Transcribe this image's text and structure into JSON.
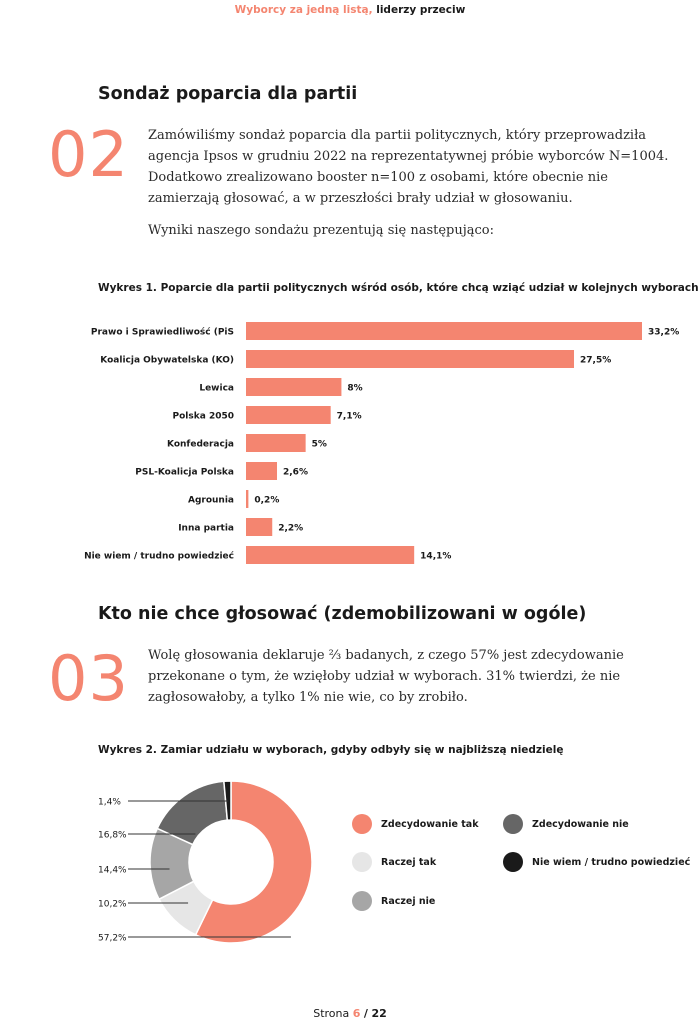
{
  "header": {
    "accent_text": "Wyborcy za jedną listą,",
    "dark_text": " liderzy przeciw"
  },
  "section2": {
    "title": "Sondaż poparcia dla partii",
    "number": "02",
    "paragraph1": "Zamówiliśmy sondaż poparcia dla partii politycznych, który przeprowadziła agencja Ipsos w grudniu 2022 na reprezentatywnej próbie wyborców N=1004. Dodatkowo zrealizowano booster n=100 z osobami, które obecnie nie zamierzają głosować, a w przeszłości brały udział w głosowaniu.",
    "paragraph2": "Wyniki naszego sondażu prezentują się następująco:"
  },
  "chart1": {
    "title": "Wykres 1. Poparcie dla partii politycznych wśród osób, które chcą wziąć udział w kolejnych wyborach"
  },
  "section3": {
    "title": "Kto nie chce głosować (zdemobilizowani w ogóle)",
    "number": "03",
    "paragraph": "Wolę głosowania deklaruje ⅔ badanych, z czego 57% jest zdecydowanie przekonane o tym, że wzięłoby udział w wyborach. 31% twierdzi, że nie zagłosowałoby, a tylko 1% nie wie, co by zrobiło."
  },
  "chart2": {
    "title": "Wykres 2. Zamiar udziału w wyborach, gdyby odbyły się w najbliższą niedzielę"
  },
  "colors": {
    "accent": "#f48570",
    "raczej_tak": "#e6e6e6",
    "raczej_nie": "#a6a6a6",
    "zdecydowanie_nie": "#666666",
    "nie_wiem": "#1a1a1a"
  },
  "chart_data": [
    {
      "type": "bar",
      "orientation": "horizontal",
      "categories": [
        "Prawo i Sprawiedliwość (PiS",
        "Koalicja Obywatelska (KO)",
        "Lewica",
        "Polska 2050",
        "Konfederacja",
        "PSL-Koalicja Polska",
        "Agrounia",
        "Inna partia",
        "Nie wiem / trudno powiedzieć"
      ],
      "values": [
        33.2,
        27.5,
        8,
        7.1,
        5,
        2.6,
        0.2,
        2.2,
        14.1
      ],
      "value_labels": [
        "33,2%",
        "27,5%",
        "8%",
        "7,1%",
        "5%",
        "2,6%",
        "0,2%",
        "2,2%",
        "14,1%"
      ],
      "color": "#f48570",
      "grid": false
    },
    {
      "type": "pie",
      "donut": true,
      "categories": [
        "Zdecydowanie tak",
        "Raczej tak",
        "Raczej nie",
        "Zdecydowanie nie",
        "Nie wiem / trudno powiedzieć"
      ],
      "values": [
        57.2,
        10.2,
        14.4,
        16.8,
        1.4
      ],
      "value_labels": [
        "57,2%",
        "10,2%",
        "14,4%",
        "16,8%",
        "1,4%"
      ],
      "colors": [
        "#f48570",
        "#e6e6e6",
        "#a6a6a6",
        "#666666",
        "#1a1a1a"
      ],
      "legend_placement": "right"
    }
  ],
  "footer": {
    "label": "Strona",
    "page": "6",
    "separator": "/",
    "total": "22"
  }
}
